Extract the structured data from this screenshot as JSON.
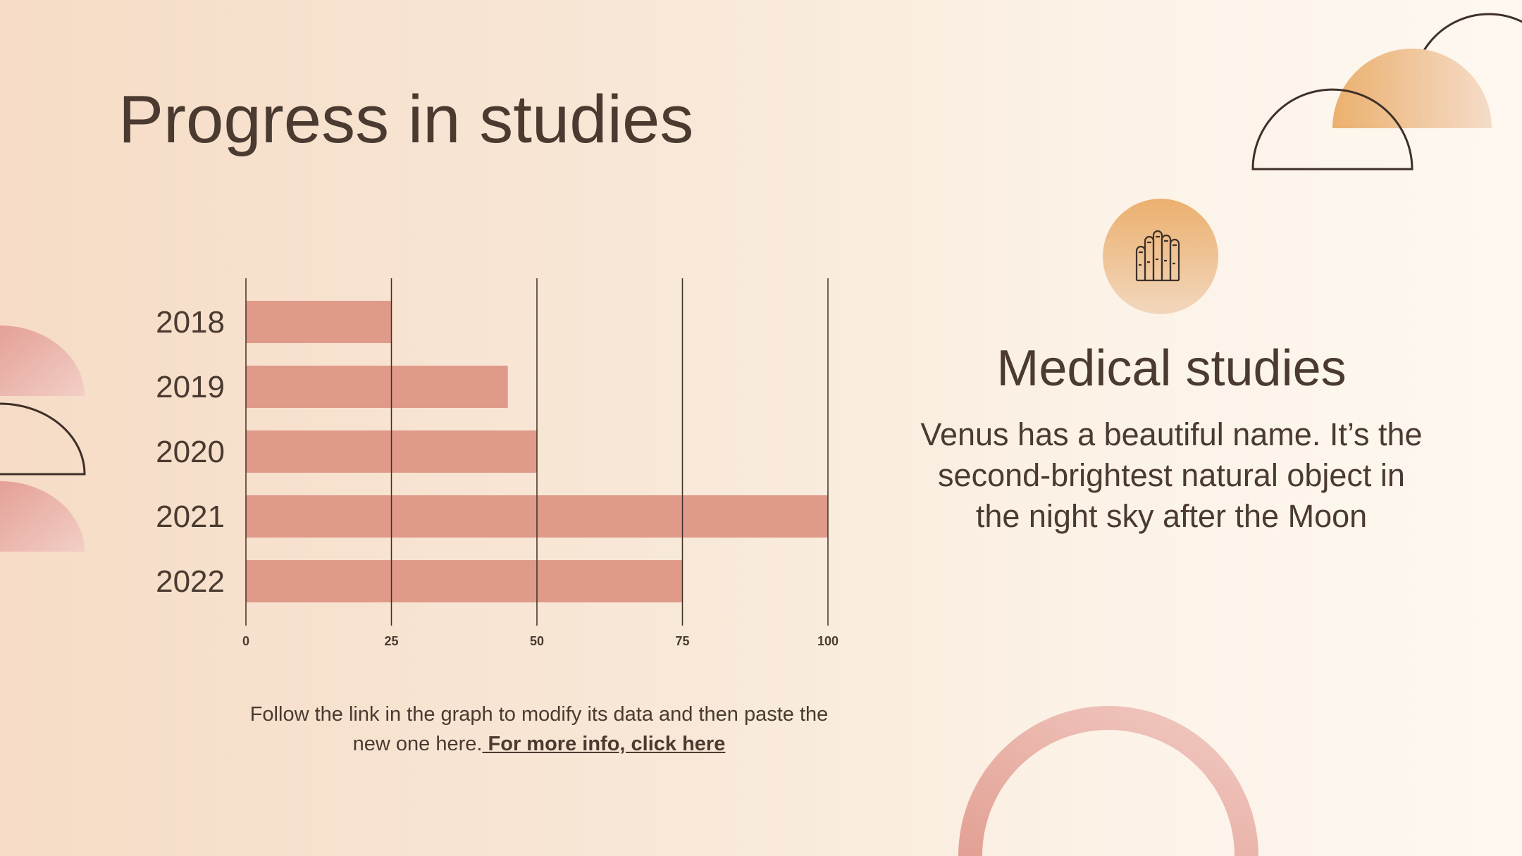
{
  "slide": {
    "title": "Progress in studies",
    "note_text": "Follow the link in the graph to modify its data and then paste the new one here.",
    "note_link": " For more info, click here"
  },
  "side_panel": {
    "icon": "hand-icon",
    "heading": "Medical studies",
    "text": "Venus has a beautiful name. It’s the second-brightest natural object in the night sky after the Moon"
  },
  "colors": {
    "bar": "#df9a8a",
    "text": "#4a3a30",
    "accent_orange": "#ebb06e",
    "accent_pink": "#e7a39b"
  },
  "chart_data": {
    "type": "bar",
    "orientation": "horizontal",
    "categories": [
      "2018",
      "2019",
      "2020",
      "2021",
      "2022"
    ],
    "values": [
      25,
      45,
      50,
      100,
      75
    ],
    "xlim": [
      0,
      100
    ],
    "xticks": [
      "0",
      "25",
      "50",
      "75",
      "100"
    ],
    "grid": true,
    "title": "",
    "xlabel": "",
    "ylabel": ""
  }
}
